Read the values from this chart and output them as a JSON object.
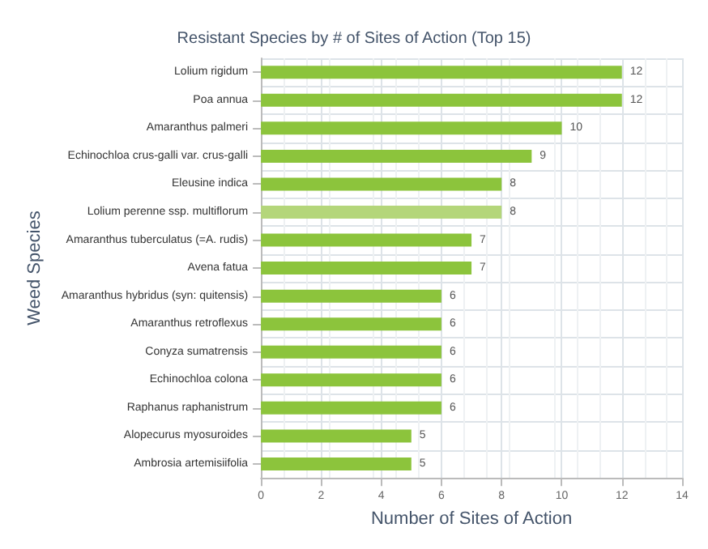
{
  "chart_data": {
    "type": "bar",
    "orientation": "horizontal",
    "title": "Resistant Species by # of Sites of Action (Top 15)",
    "xlabel": "Number of Sites of Action",
    "ylabel": "Weed Species",
    "categories": [
      "Lolium rigidum",
      "Poa annua",
      "Amaranthus palmeri",
      "Echinochloa crus-galli var. crus-galli",
      "Eleusine indica",
      "Lolium perenne ssp. multiflorum",
      "Amaranthus tuberculatus (=A. rudis)",
      "Avena fatua",
      "Amaranthus hybridus (syn: quitensis)",
      "Amaranthus retroflexus",
      "Conyza sumatrensis",
      "Echinochloa colona",
      "Raphanus raphanistrum",
      "Alopecurus myosuroides",
      "Ambrosia artemisiifolia"
    ],
    "values": [
      12,
      12,
      10,
      9,
      8,
      8,
      7,
      7,
      6,
      6,
      6,
      6,
      6,
      5,
      5
    ],
    "colors": [
      "#8cc43c",
      "#8cc43c",
      "#8cc43c",
      "#8cc43c",
      "#8cc43c",
      "#b4d67a",
      "#8cc43c",
      "#8cc43c",
      "#8cc43c",
      "#8cc43c",
      "#8cc43c",
      "#8cc43c",
      "#8cc43c",
      "#8cc43c",
      "#8cc43c"
    ],
    "xlim": [
      0,
      14
    ],
    "xticks": [
      0,
      2,
      4,
      6,
      8,
      10,
      12,
      14
    ],
    "grid": true,
    "data_labels": true
  }
}
